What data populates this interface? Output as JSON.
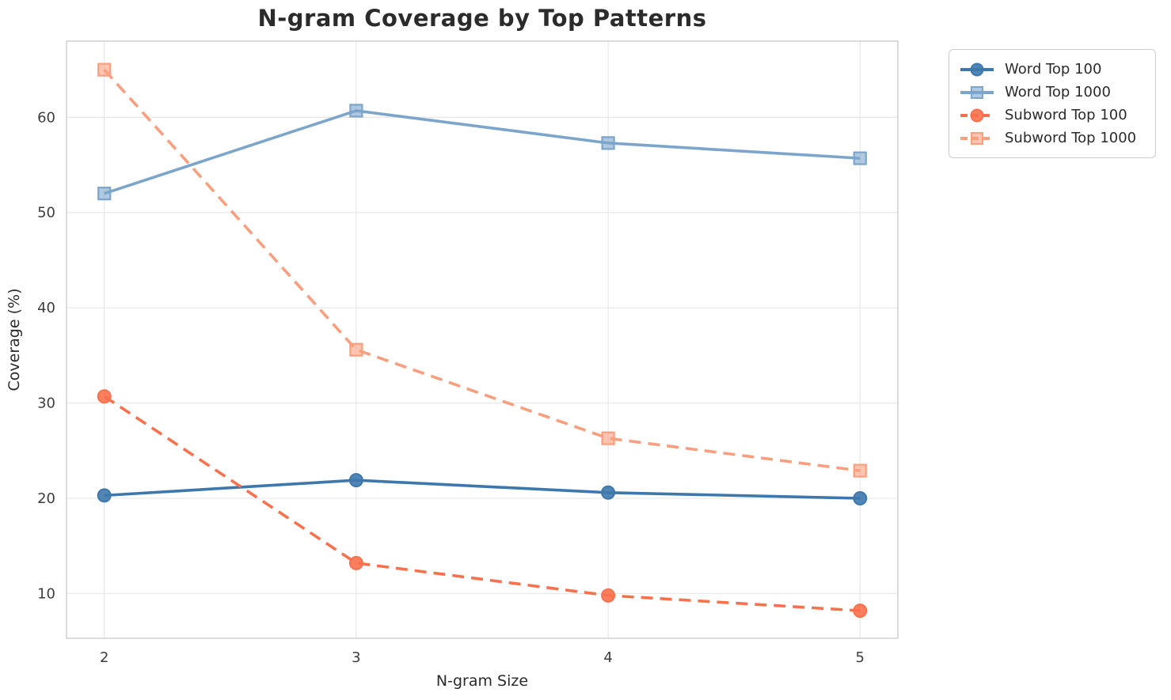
{
  "title": "N-gram Coverage by Top Patterns",
  "chart_data": {
    "type": "line",
    "title": "N-gram Coverage by Top Patterns",
    "xlabel": "N-gram Size",
    "ylabel": "Coverage (%)",
    "x": [
      2,
      3,
      4,
      5
    ],
    "xticks": [
      2,
      3,
      4,
      5
    ],
    "yticks": [
      10,
      20,
      30,
      40,
      50,
      60
    ],
    "xlim": [
      1.85,
      5.15
    ],
    "ylim": [
      5.3,
      68.0
    ],
    "grid": true,
    "legend_position": "outside-upper-right",
    "series": [
      {
        "name": "Word Top 100",
        "values": [
          20.3,
          21.9,
          20.6,
          20.0
        ],
        "color": "#3d78ad",
        "marker": "circle",
        "line": "solid"
      },
      {
        "name": "Word Top 1000",
        "values": [
          52.0,
          60.7,
          57.3,
          55.7
        ],
        "color": "#7ca5cc",
        "marker": "square",
        "line": "solid"
      },
      {
        "name": "Subword Top 100",
        "values": [
          30.7,
          13.2,
          9.8,
          8.2
        ],
        "color": "#f8714c",
        "marker": "circle",
        "line": "dashed"
      },
      {
        "name": "Subword Top 1000",
        "values": [
          65.0,
          35.6,
          26.3,
          22.9
        ],
        "color": "#fa9e7e",
        "marker": "square",
        "line": "dashed"
      }
    ],
    "colors": {
      "grid": "#e9e9e9",
      "spine": "#cccccc",
      "tick_label": "#3d3d3d",
      "title_text": "#2b2b2b"
    }
  }
}
